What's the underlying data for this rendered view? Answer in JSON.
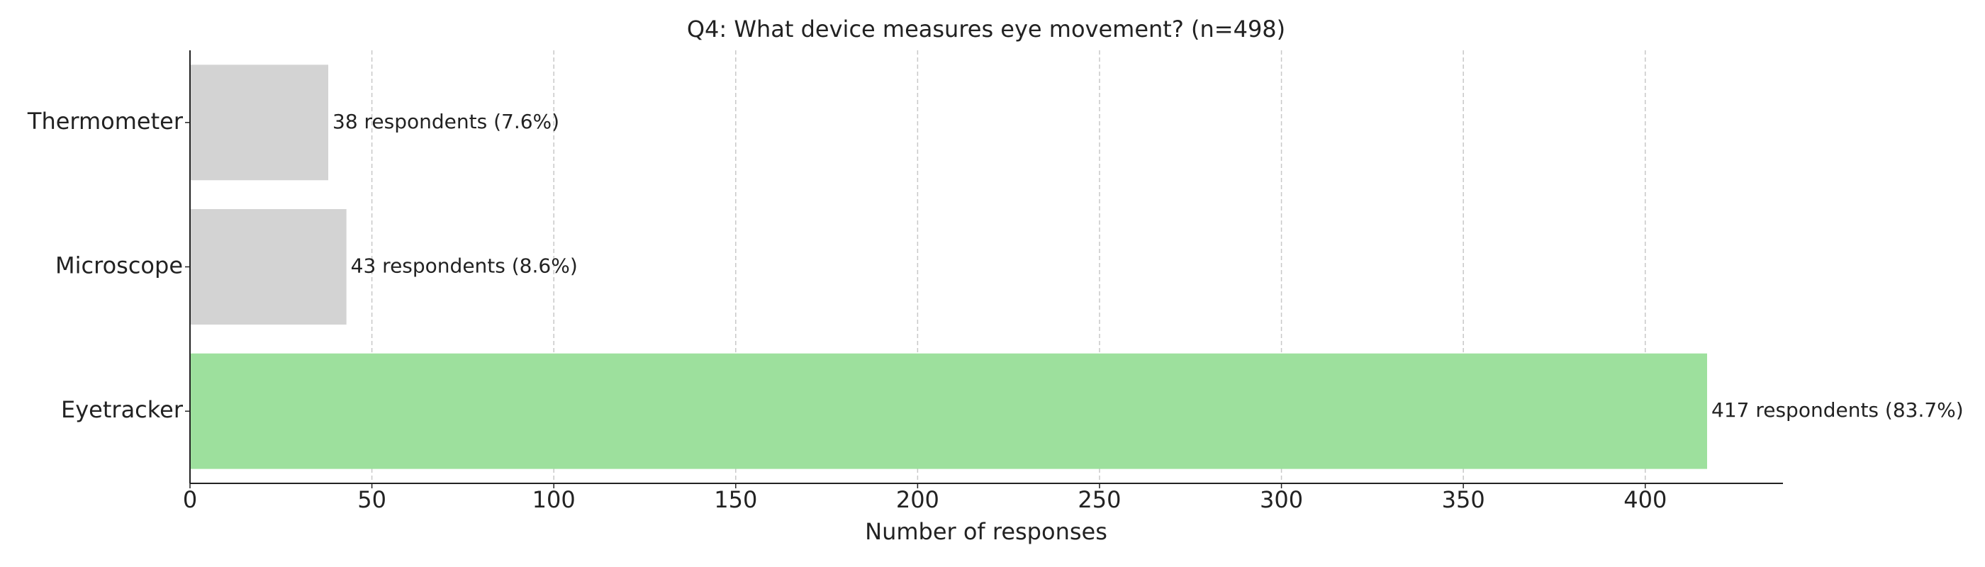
{
  "chart_data": {
    "type": "hbar",
    "title": "Q4: What device measures eye movement? (n=498)",
    "xlabel": "Number of responses",
    "categories": [
      "Eyetracker",
      "Microscope",
      "Thermometer"
    ],
    "values": [
      417,
      43,
      38
    ],
    "value_labels": [
      "417 respondents (83.7%)",
      "43 respondents (8.6%)",
      "38 respondents (7.6%)"
    ],
    "colors": [
      "#9de09d",
      "#d3d3d3",
      "#d3d3d3"
    ],
    "xlim": [
      0,
      437.85
    ],
    "xticks": [
      0,
      50,
      100,
      150,
      200,
      250,
      300,
      350,
      400
    ],
    "grid": true
  }
}
